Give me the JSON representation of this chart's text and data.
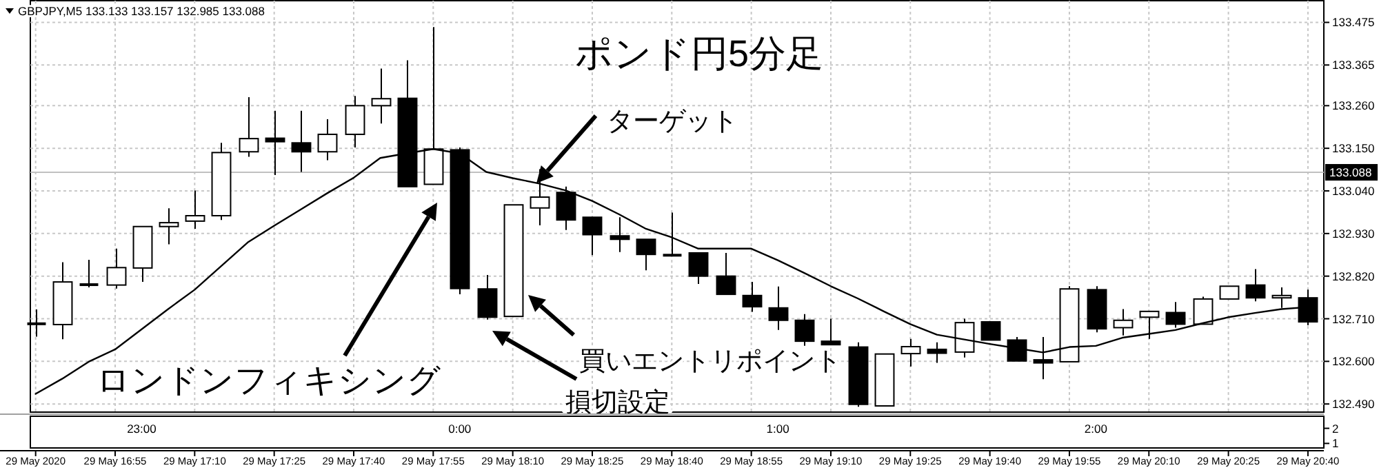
{
  "chart_data": [
    {
      "type": "candlestick",
      "title": "ポンド円5分足",
      "x": [
        "2020-05-29T16:40",
        "2020-05-29T16:45",
        "2020-05-29T16:50",
        "2020-05-29T16:55",
        "2020-05-29T17:00",
        "2020-05-29T17:05",
        "2020-05-29T17:10",
        "2020-05-29T17:15",
        "2020-05-29T17:20",
        "2020-05-29T17:25",
        "2020-05-29T17:30",
        "2020-05-29T17:35",
        "2020-05-29T17:40",
        "2020-05-29T17:45",
        "2020-05-29T17:50",
        "2020-05-29T17:55",
        "2020-05-29T18:00",
        "2020-05-29T18:05",
        "2020-05-29T18:10",
        "2020-05-29T18:15",
        "2020-05-29T18:20",
        "2020-05-29T18:25",
        "2020-05-29T18:30",
        "2020-05-29T18:35",
        "2020-05-29T18:40",
        "2020-05-29T18:45",
        "2020-05-29T18:50",
        "2020-05-29T18:55",
        "2020-05-29T19:00",
        "2020-05-29T19:05",
        "2020-05-29T19:10",
        "2020-05-29T19:15",
        "2020-05-29T19:20",
        "2020-05-29T19:25",
        "2020-05-29T19:30",
        "2020-05-29T19:35",
        "2020-05-29T19:40",
        "2020-05-29T19:45",
        "2020-05-29T19:50",
        "2020-05-29T19:55",
        "2020-05-29T20:00",
        "2020-05-29T20:05",
        "2020-05-29T20:10",
        "2020-05-29T20:15",
        "2020-05-29T20:20",
        "2020-05-29T20:25",
        "2020-05-29T20:30",
        "2020-05-29T20:35",
        "2020-05-29T20:40"
      ],
      "ohlc": [
        [
          132.697,
          132.734,
          132.664,
          132.697
        ],
        [
          132.695,
          132.856,
          132.657,
          132.805
        ],
        [
          132.798,
          132.862,
          132.791,
          132.798
        ],
        [
          132.797,
          132.891,
          132.788,
          132.842
        ],
        [
          132.841,
          132.948,
          132.805,
          132.948
        ],
        [
          132.948,
          132.995,
          132.902,
          132.958
        ],
        [
          132.962,
          133.041,
          132.942,
          132.976
        ],
        [
          132.976,
          133.164,
          132.965,
          133.139
        ],
        [
          133.141,
          133.282,
          133.128,
          133.175
        ],
        [
          133.176,
          133.247,
          133.081,
          133.167
        ],
        [
          133.164,
          133.247,
          133.089,
          133.141
        ],
        [
          133.141,
          133.225,
          133.119,
          133.186
        ],
        [
          133.186,
          133.285,
          133.152,
          133.26
        ],
        [
          133.26,
          133.356,
          133.214,
          133.278
        ],
        [
          133.279,
          133.377,
          133.051,
          133.051
        ],
        [
          133.057,
          133.463,
          133.057,
          133.148
        ],
        [
          133.146,
          133.152,
          132.773,
          132.788
        ],
        [
          132.787,
          132.823,
          132.708,
          132.714
        ],
        [
          132.716,
          133.004,
          132.716,
          133.004
        ],
        [
          132.996,
          133.096,
          132.951,
          133.024
        ],
        [
          133.036,
          133.051,
          132.939,
          132.965
        ],
        [
          132.972,
          132.972,
          132.874,
          132.927
        ],
        [
          132.924,
          132.972,
          132.882,
          132.915
        ],
        [
          132.915,
          132.915,
          132.835,
          132.876
        ],
        [
          132.874,
          132.984,
          132.874,
          132.874
        ],
        [
          132.88,
          132.88,
          132.8,
          132.82
        ],
        [
          132.82,
          132.88,
          132.773,
          132.773
        ],
        [
          132.77,
          132.805,
          132.728,
          132.741
        ],
        [
          132.738,
          132.793,
          132.681,
          132.706
        ],
        [
          132.706,
          132.722,
          132.64,
          132.652
        ],
        [
          132.652,
          132.71,
          132.643,
          132.643
        ],
        [
          132.637,
          132.649,
          132.483,
          132.489
        ],
        [
          132.485,
          132.619,
          132.485,
          132.619
        ],
        [
          132.62,
          132.658,
          132.587,
          132.638
        ],
        [
          132.631,
          132.649,
          132.596,
          132.621
        ],
        [
          132.624,
          132.71,
          132.61,
          132.7
        ],
        [
          132.702,
          132.702,
          132.655,
          132.655
        ],
        [
          132.655,
          132.663,
          132.601,
          132.601
        ],
        [
          132.604,
          132.663,
          132.554,
          132.596
        ],
        [
          132.599,
          132.794,
          132.599,
          132.787
        ],
        [
          132.785,
          132.794,
          132.675,
          132.684
        ],
        [
          132.687,
          132.735,
          132.667,
          132.706
        ],
        [
          132.714,
          132.729,
          132.658,
          132.729
        ],
        [
          132.726,
          132.753,
          132.687,
          132.696
        ],
        [
          132.696,
          132.767,
          132.696,
          132.761
        ],
        [
          132.761,
          132.794,
          132.761,
          132.794
        ],
        [
          132.797,
          132.838,
          132.755,
          132.764
        ],
        [
          132.764,
          132.791,
          132.738,
          132.77
        ],
        [
          132.764,
          132.785,
          132.693,
          132.702
        ]
      ],
      "series": [
        {
          "type": "line",
          "color": "#000000",
          "values": [
            132.516,
            132.555,
            132.599,
            132.631,
            132.683,
            132.735,
            132.785,
            132.846,
            132.907,
            132.95,
            132.992,
            133.034,
            133.074,
            133.125,
            133.137,
            133.148,
            133.137,
            133.089,
            133.073,
            133.059,
            133.041,
            133.014,
            132.98,
            132.943,
            132.92,
            132.891,
            132.891,
            132.891,
            132.861,
            132.828,
            132.794,
            132.763,
            132.729,
            132.696,
            132.669,
            132.657,
            132.645,
            132.634,
            132.623,
            132.637,
            132.64,
            132.661,
            132.671,
            132.681,
            132.698,
            132.714,
            132.725,
            132.735,
            132.74
          ]
        }
      ],
      "xlim": [
        "2020-05-29T16:39",
        "2020-05-29T20:43"
      ],
      "xticks": [
        {
          "value": "2020-05-29T16:40",
          "label": "29 May 2020"
        },
        {
          "value": "2020-05-29T16:55",
          "label": "29 May 16:55"
        },
        {
          "value": "2020-05-29T17:10",
          "label": "29 May 17:10"
        },
        {
          "value": "2020-05-29T17:25",
          "label": "29 May 17:25"
        },
        {
          "value": "2020-05-29T17:40",
          "label": "29 May 17:40"
        },
        {
          "value": "2020-05-29T17:55",
          "label": "29 May 17:55"
        },
        {
          "value": "2020-05-29T18:10",
          "label": "29 May 18:10"
        },
        {
          "value": "2020-05-29T18:25",
          "label": "29 May 18:25"
        },
        {
          "value": "2020-05-29T18:40",
          "label": "29 May 18:40"
        },
        {
          "value": "2020-05-29T18:55",
          "label": "29 May 18:55"
        },
        {
          "value": "2020-05-29T19:10",
          "label": "29 May 19:10"
        },
        {
          "value": "2020-05-29T19:25",
          "label": "29 May 19:25"
        },
        {
          "value": "2020-05-29T19:40",
          "label": "29 May 19:40"
        },
        {
          "value": "2020-05-29T19:55",
          "label": "29 May 19:55"
        },
        {
          "value": "2020-05-29T20:10",
          "label": "29 May 20:10"
        },
        {
          "value": "2020-05-29T20:25",
          "label": "29 May 20:25"
        },
        {
          "value": "2020-05-29T20:40",
          "label": "29 May 20:40"
        }
      ],
      "ylim": [
        132.469,
        133.531
      ],
      "yticks": [
        {
          "value": 133.475,
          "label": "133.475"
        },
        {
          "value": 133.365,
          "label": "133.365"
        },
        {
          "value": 133.26,
          "label": "133.260"
        },
        {
          "value": 133.15,
          "label": "133.150"
        },
        {
          "value": 133.04,
          "label": "133.040"
        },
        {
          "value": 132.93,
          "label": "132.930"
        },
        {
          "value": 132.82,
          "label": "132.820"
        },
        {
          "value": 132.71,
          "label": "132.710"
        },
        {
          "value": 132.6,
          "label": "132.600"
        },
        {
          "value": 132.49,
          "label": "132.490"
        }
      ],
      "grid": true,
      "ref_lines": [
        {
          "axis": "y",
          "value": 133.088,
          "label": "133.088",
          "color": "#c0c0c0"
        }
      ],
      "annotations": [
        "GBPJPY,M5 133.133 133.157 132.985 133.088",
        {
          "text": "ロンドンフィキシング"
        },
        {
          "text": "ターゲット"
        },
        {
          "text": "買いエントリポイント"
        },
        {
          "text": "損切設定"
        }
      ]
    },
    {
      "type": "line",
      "xlim": [
        "2020-05-29T16:39",
        "2020-05-29T20:43"
      ],
      "xticks": [
        {
          "value": "2020-05-29T17:00",
          "label": "23:00"
        },
        {
          "value": "2020-05-29T18:00",
          "label": "0:00"
        },
        {
          "value": "2020-05-29T19:00",
          "label": "1:00"
        },
        {
          "value": "2020-05-29T20:00",
          "label": "2:00"
        }
      ],
      "ylim": [
        0.7,
        2.8
      ],
      "yticks": [
        1,
        2
      ]
    }
  ]
}
